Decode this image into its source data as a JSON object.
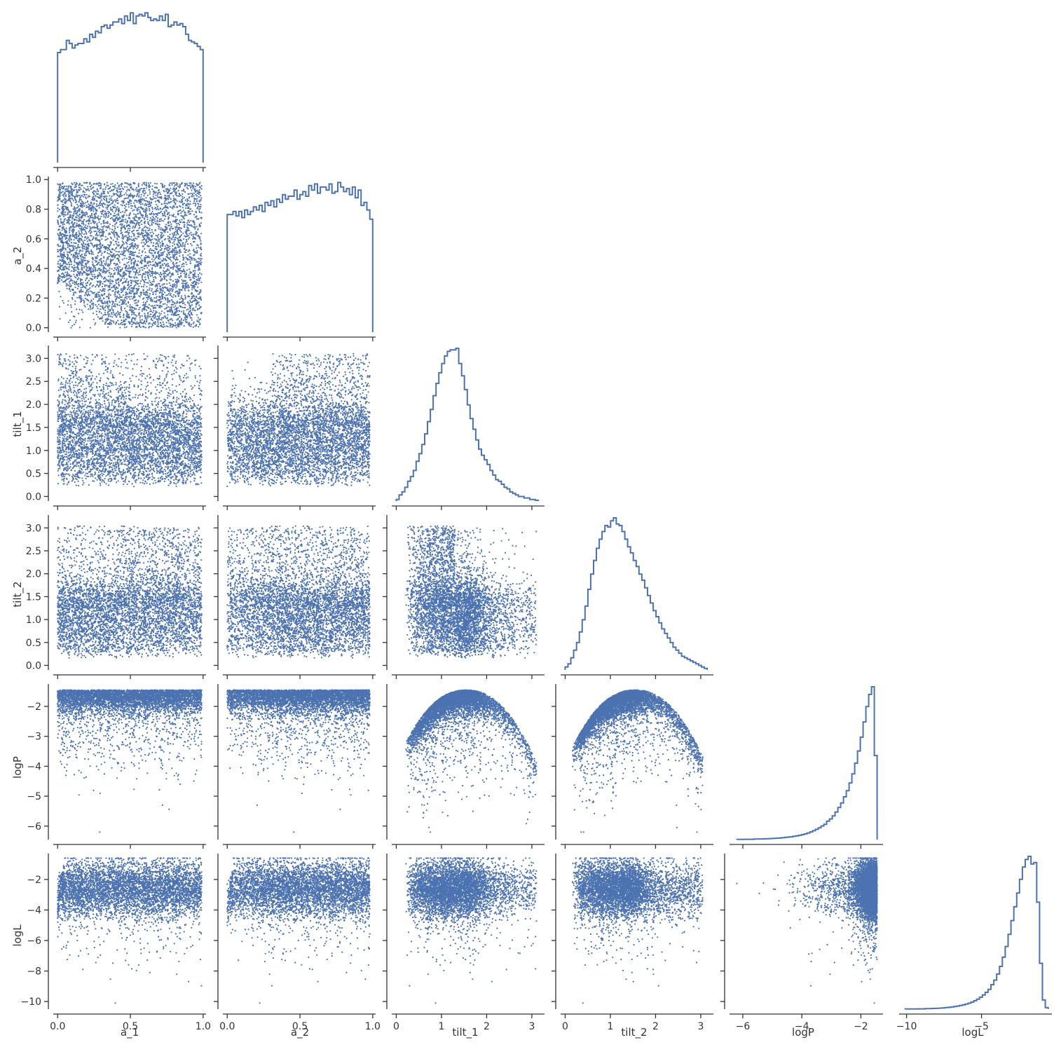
{
  "chart_data": {
    "type": "scatter",
    "layout": "corner pairplot (lower-triangle scatter, diagonal step histograms)",
    "marker_color": "#4c72b0",
    "grid": false,
    "variables": [
      "a_1",
      "a_2",
      "tilt_1",
      "tilt_2",
      "logP",
      "logL"
    ],
    "axes": {
      "a_1": {
        "label": "a_1",
        "range": [
          -0.03,
          1.02
        ],
        "ticks": [
          "0.0",
          "0.5",
          "1.0"
        ]
      },
      "a_2": {
        "label": "a_2",
        "range": [
          -0.03,
          1.02
        ],
        "ticks": [
          "0.0",
          "0.2",
          "0.4",
          "0.6",
          "0.8",
          "1.0"
        ]
      },
      "tilt_1": {
        "label": "tilt_1",
        "range": [
          -0.1,
          3.28
        ],
        "ticks": [
          "0",
          "1",
          "2",
          "3",
          "0.0",
          "0.5",
          "1.0",
          "1.5",
          "2.0",
          "2.5",
          "3.0"
        ]
      },
      "tilt_2": {
        "label": "tilt_2",
        "range": [
          -0.1,
          3.28
        ],
        "ticks": [
          "0",
          "1",
          "2",
          "3",
          "0.0",
          "0.5",
          "1.0",
          "1.5",
          "2.0",
          "2.5",
          "3.0"
        ]
      },
      "logP": {
        "label": "logP",
        "range": [
          -6.45,
          -1.25
        ],
        "ticks": [
          "−6",
          "−4",
          "−2",
          "−5",
          "−3"
        ]
      },
      "logL": {
        "label": "logL",
        "range": [
          -10.5,
          -0.3
        ],
        "ticks": [
          "−10",
          "−5",
          "−8",
          "−6",
          "−4",
          "−2"
        ]
      }
    },
    "histograms": {
      "a_1": {
        "edges": [
          0,
          1
        ],
        "counts": [
          0.72,
          0.74,
          0.74,
          0.8,
          0.78,
          0.75,
          0.77,
          0.78,
          0.78,
          0.81,
          0.79,
          0.84,
          0.82,
          0.86,
          0.85,
          0.89,
          0.9,
          0.88,
          0.9,
          0.92,
          0.92,
          0.94,
          0.91,
          0.96,
          0.93,
          0.98,
          0.91,
          0.96,
          0.97,
          0.96,
          0.98,
          0.95,
          0.93,
          0.94,
          0.93,
          0.96,
          0.93,
          0.97,
          0.89,
          0.9,
          0.92,
          0.9,
          0.91,
          0.89,
          0.84,
          0.8,
          0.79,
          0.78,
          0.76,
          0.74
        ]
      },
      "a_2": {
        "edges": [
          0,
          1
        ],
        "counts": [
          0.77,
          0.77,
          0.79,
          0.76,
          0.79,
          0.75,
          0.8,
          0.77,
          0.79,
          0.82,
          0.8,
          0.83,
          0.79,
          0.85,
          0.83,
          0.86,
          0.82,
          0.87,
          0.85,
          0.9,
          0.87,
          0.89,
          0.89,
          0.93,
          0.87,
          0.9,
          0.92,
          0.89,
          0.96,
          0.93,
          0.97,
          0.91,
          0.95,
          0.95,
          0.93,
          0.97,
          0.91,
          0.92,
          0.98,
          0.95,
          0.92,
          0.94,
          0.9,
          0.95,
          0.88,
          0.93,
          0.83,
          0.85,
          0.8,
          0.74
        ]
      },
      "tilt_1": {
        "edges": [
          0,
          3.1416
        ],
        "counts": [
          0.01,
          0.04,
          0.06,
          0.09,
          0.13,
          0.16,
          0.2,
          0.26,
          0.31,
          0.37,
          0.44,
          0.52,
          0.6,
          0.69,
          0.77,
          0.84,
          0.9,
          0.95,
          0.98,
          0.99,
          0.99,
          1,
          0.9,
          0.82,
          0.73,
          0.63,
          0.54,
          0.47,
          0.4,
          0.34,
          0.3,
          0.27,
          0.24,
          0.2,
          0.17,
          0.14,
          0.13,
          0.11,
          0.09,
          0.08,
          0.06,
          0.05,
          0.04,
          0.03,
          0.03,
          0.02,
          0.02,
          0.01,
          0.01,
          0.005
        ]
      },
      "tilt_2": {
        "edges": [
          0,
          3.1416
        ],
        "counts": [
          0.02,
          0.04,
          0.08,
          0.13,
          0.18,
          0.25,
          0.33,
          0.42,
          0.53,
          0.63,
          0.72,
          0.8,
          0.86,
          0.91,
          0.95,
          0.94,
          0.98,
          1,
          0.96,
          0.95,
          0.91,
          0.86,
          0.81,
          0.77,
          0.72,
          0.68,
          0.63,
          0.59,
          0.54,
          0.49,
          0.44,
          0.39,
          0.35,
          0.31,
          0.27,
          0.24,
          0.21,
          0.18,
          0.15,
          0.13,
          0.11,
          0.09,
          0.08,
          0.07,
          0.06,
          0.05,
          0.04,
          0.03,
          0.02,
          0.01
        ]
      },
      "logP": {
        "edges": [
          -6.2,
          -1.45
        ],
        "counts": [
          0.001,
          0.001,
          0.001,
          0.002,
          0.002,
          0.002,
          0.003,
          0.003,
          0.004,
          0.004,
          0.005,
          0.006,
          0.007,
          0.008,
          0.009,
          0.01,
          0.012,
          0.014,
          0.016,
          0.018,
          0.021,
          0.024,
          0.028,
          0.032,
          0.037,
          0.043,
          0.05,
          0.058,
          0.067,
          0.077,
          0.089,
          0.1,
          0.12,
          0.135,
          0.155,
          0.18,
          0.21,
          0.24,
          0.28,
          0.32,
          0.37,
          0.43,
          0.5,
          0.58,
          0.67,
          0.77,
          0.87,
          0.95,
          1,
          0.55
        ]
      },
      "logL": {
        "edges": [
          -10.1,
          -0.55
        ],
        "counts": [
          0.001,
          0.001,
          0.001,
          0.001,
          0.002,
          0.002,
          0.002,
          0.003,
          0.003,
          0.004,
          0.005,
          0.006,
          0.007,
          0.008,
          0.01,
          0.012,
          0.014,
          0.017,
          0.02,
          0.024,
          0.028,
          0.033,
          0.039,
          0.046,
          0.055,
          0.065,
          0.078,
          0.093,
          0.11,
          0.13,
          0.16,
          0.19,
          0.23,
          0.28,
          0.34,
          0.41,
          0.49,
          0.58,
          0.67,
          0.76,
          0.85,
          0.93,
          0.98,
          1,
          0.95,
          0.96,
          0.7,
          0.3,
          0.06,
          0.01
        ]
      }
    },
    "scatter_panels": [
      {
        "x": "a_1",
        "y": "a_2",
        "shape": "uniform over a_1 in [0,1], a_2 in [0,0.98]; lower-left corner empty below a_2 ≈ 0.3·0.05 rising to 0 at a_1≈0.35"
      },
      {
        "x": "a_1",
        "y": "tilt_1",
        "shape": "bulk 0.2–1.8, upper envelope falls from ~3.1 at a_1=0 to ~2.0 at a_1≈0.5"
      },
      {
        "x": "a_2",
        "y": "tilt_1",
        "shape": "bulk 0.2–1.6 at small a_2, spreading to ~3.1 for a_2>0.3"
      },
      {
        "x": "tilt_1",
        "y": "tilt_2",
        "shape": "L-shaped: tilt_2 up to 3 for tilt_1<1.3, tilt_2<1.5 for larger tilt_1"
      },
      {
        "x": "a_1",
        "y": "tilt_2",
        "shape": "bulk 0.1–1.5 at small a_1, spreading to ~3 for a_1>0.4"
      },
      {
        "x": "a_2",
        "y": "tilt_2",
        "shape": "upper envelope falls from ~3 at a_2=0 to ~1.8 at a_2=1"
      },
      {
        "x": "a_1",
        "y": "logP",
        "shape": "dense band −1.45 to −2.5, sparse tail to −6.2"
      },
      {
        "x": "a_2",
        "y": "logP",
        "shape": "dense band −1.45 to −2.5, sparse tail to −6.2"
      },
      {
        "x": "tilt_1",
        "y": "logP",
        "shape": "dome: max −1.45 at tilt_1≈1.5, falling to −4 at 0 and π"
      },
      {
        "x": "tilt_2",
        "y": "logP",
        "shape": "dome: max −1.45 at tilt_2≈1.5, falling to −4 at 0 and π"
      },
      {
        "x": "a_1",
        "y": "logL",
        "shape": "band −1 to −4, rises steeply near a_1=0 from −7, tail to −10"
      },
      {
        "x": "a_2",
        "y": "logL",
        "shape": "band −1 to −4, rises steeply near a_2=0 from −8, tail to −10"
      },
      {
        "x": "tilt_1",
        "y": "logL",
        "shape": "blob −2 to −4.5, peak −0.7 at tilt_1≈1.4, tail to −8"
      },
      {
        "x": "tilt_2",
        "y": "logL",
        "shape": "blob −1 to −4.5, top −0.7 at tilt_2≈1, tail to −10"
      },
      {
        "x": "logP",
        "y": "logL",
        "shape": "wedge widening toward logP=−1.45, logL −0.7 to −7; sparse points at logP<−4"
      }
    ]
  }
}
